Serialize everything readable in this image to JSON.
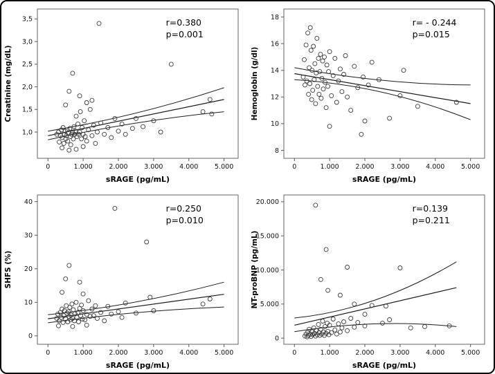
{
  "figure": {
    "background": "#ffffff",
    "border_color": "#000000",
    "point_color": "#3a3a3a",
    "line_color": "#1a1a1a",
    "frame_color": "#555555"
  },
  "chart_data": [
    {
      "type": "scatter",
      "title": "",
      "xlabel": "sRAGE (pg/mL)",
      "ylabel": "Creatinine (mg/dL)",
      "annotation_r": "r=0.380",
      "annotation_p": "p=0.001",
      "xlim": [
        -300,
        5400
      ],
      "ylim": [
        0.42,
        3.72
      ],
      "xticks": [
        {
          "v": 0,
          "label": "0"
        },
        {
          "v": 1000,
          "label": "1.000"
        },
        {
          "v": 2000,
          "label": "2.000"
        },
        {
          "v": 3000,
          "label": "3.000"
        },
        {
          "v": 4000,
          "label": "4.000"
        },
        {
          "v": 5000,
          "label": "5.000"
        }
      ],
      "yticks": [
        {
          "v": 1.0,
          "label": "1,0"
        },
        {
          "v": 1.5,
          "label": "1,5"
        },
        {
          "v": 2.0,
          "label": "2,0"
        },
        {
          "v": 2.5,
          "label": "2,5"
        },
        {
          "v": 3.0,
          "label": "3,0"
        },
        {
          "v": 3.5,
          "label": "3,5"
        }
      ],
      "points": [
        [
          250,
          0.95
        ],
        [
          300,
          1.0
        ],
        [
          320,
          0.78
        ],
        [
          360,
          0.92
        ],
        [
          380,
          1.05
        ],
        [
          400,
          0.65
        ],
        [
          400,
          0.88
        ],
        [
          430,
          1.1
        ],
        [
          450,
          0.75
        ],
        [
          470,
          0.95
        ],
        [
          490,
          1.02
        ],
        [
          500,
          1.6
        ],
        [
          510,
          0.85
        ],
        [
          530,
          0.92
        ],
        [
          550,
          1.05
        ],
        [
          560,
          0.8
        ],
        [
          580,
          0.98
        ],
        [
          600,
          0.6
        ],
        [
          600,
          1.9
        ],
        [
          620,
          1.08
        ],
        [
          640,
          0.9
        ],
        [
          650,
          0.72
        ],
        [
          670,
          0.95
        ],
        [
          700,
          1.0
        ],
        [
          700,
          2.3
        ],
        [
          720,
          0.85
        ],
        [
          740,
          1.12
        ],
        [
          760,
          0.95
        ],
        [
          780,
          1.02
        ],
        [
          800,
          0.62
        ],
        [
          800,
          1.35
        ],
        [
          820,
          0.9
        ],
        [
          850,
          1.18
        ],
        [
          870,
          0.95
        ],
        [
          900,
          1.0
        ],
        [
          900,
          1.8
        ],
        [
          920,
          1.45
        ],
        [
          950,
          0.85
        ],
        [
          970,
          1.1
        ],
        [
          1000,
          0.68
        ],
        [
          1000,
          0.95
        ],
        [
          1030,
          1.25
        ],
        [
          1060,
          0.9
        ],
        [
          1100,
          0.8
        ],
        [
          1100,
          1.65
        ],
        [
          1150,
          1.05
        ],
        [
          1200,
          1.5
        ],
        [
          1250,
          0.92
        ],
        [
          1250,
          1.7
        ],
        [
          1300,
          1.15
        ],
        [
          1350,
          0.75
        ],
        [
          1400,
          1.0
        ],
        [
          1450,
          3.4
        ],
        [
          1500,
          1.2
        ],
        [
          1600,
          0.95
        ],
        [
          1700,
          1.1
        ],
        [
          1800,
          0.88
        ],
        [
          1900,
          1.3
        ],
        [
          2000,
          1.02
        ],
        [
          2100,
          1.18
        ],
        [
          2200,
          0.95
        ],
        [
          2400,
          1.08
        ],
        [
          2500,
          1.3
        ],
        [
          2700,
          1.12
        ],
        [
          3000,
          1.25
        ],
        [
          3200,
          1.0
        ],
        [
          3500,
          2.5
        ],
        [
          4400,
          1.45
        ],
        [
          4600,
          1.72
        ],
        [
          4650,
          1.4
        ]
      ],
      "reg_line": [
        [
          0,
          0.92
        ],
        [
          5000,
          1.72
        ]
      ],
      "ci_upper": [
        [
          0,
          1.02
        ],
        [
          2500,
          1.42
        ],
        [
          5000,
          1.98
        ]
      ],
      "ci_lower": [
        [
          0,
          0.83
        ],
        [
          2500,
          1.2
        ],
        [
          5000,
          1.45
        ]
      ]
    },
    {
      "type": "scatter",
      "title": "",
      "xlabel": "sRAGE (pg/mL)",
      "ylabel": "Hemoglobin (g/dl)",
      "annotation_r": "r= - 0.244",
      "annotation_p": "p=0.015",
      "xlim": [
        -300,
        5400
      ],
      "ylim": [
        7.4,
        18.6
      ],
      "xticks": [
        {
          "v": 0,
          "label": "0"
        },
        {
          "v": 1000,
          "label": "1.000"
        },
        {
          "v": 2000,
          "label": "2.000"
        },
        {
          "v": 3000,
          "label": "3.000"
        },
        {
          "v": 4000,
          "label": "4.000"
        },
        {
          "v": 5000,
          "label": "5.000"
        }
      ],
      "yticks": [
        {
          "v": 8,
          "label": "8"
        },
        {
          "v": 10,
          "label": "10"
        },
        {
          "v": 12,
          "label": "12"
        },
        {
          "v": 14,
          "label": "14"
        },
        {
          "v": 16,
          "label": "16"
        },
        {
          "v": 18,
          "label": "18"
        }
      ],
      "points": [
        [
          250,
          13.5
        ],
        [
          280,
          14.8
        ],
        [
          300,
          12.9
        ],
        [
          330,
          15.9
        ],
        [
          350,
          13.2
        ],
        [
          380,
          16.8
        ],
        [
          400,
          12.2
        ],
        [
          420,
          14.2
        ],
        [
          440,
          13.0
        ],
        [
          450,
          17.2
        ],
        [
          470,
          15.5
        ],
        [
          490,
          11.8
        ],
        [
          500,
          14.0
        ],
        [
          520,
          12.5
        ],
        [
          540,
          15.8
        ],
        [
          560,
          13.3
        ],
        [
          580,
          14.5
        ],
        [
          600,
          11.5
        ],
        [
          620,
          13.8
        ],
        [
          640,
          16.4
        ],
        [
          660,
          12.8
        ],
        [
          680,
          14.9
        ],
        [
          700,
          12.2
        ],
        [
          720,
          13.9
        ],
        [
          740,
          15.2
        ],
        [
          760,
          11.9
        ],
        [
          780,
          13.4
        ],
        [
          800,
          14.7
        ],
        [
          820,
          12.6
        ],
        [
          850,
          15.0
        ],
        [
          870,
          13.1
        ],
        [
          900,
          11.2
        ],
        [
          920,
          14.4
        ],
        [
          950,
          12.8
        ],
        [
          970,
          13.9
        ],
        [
          1000,
          9.8
        ],
        [
          1000,
          15.4
        ],
        [
          1050,
          12.1
        ],
        [
          1100,
          13.6
        ],
        [
          1150,
          14.9
        ],
        [
          1200,
          11.6
        ],
        [
          1250,
          13.2
        ],
        [
          1300,
          14.1
        ],
        [
          1350,
          12.4
        ],
        [
          1400,
          13.7
        ],
        [
          1450,
          15.1
        ],
        [
          1500,
          12.0
        ],
        [
          1600,
          11.0
        ],
        [
          1700,
          14.3
        ],
        [
          1800,
          12.7
        ],
        [
          1900,
          9.2
        ],
        [
          1950,
          13.5
        ],
        [
          2000,
          10.2
        ],
        [
          2100,
          12.9
        ],
        [
          2200,
          14.6
        ],
        [
          2400,
          13.3
        ],
        [
          2700,
          10.4
        ],
        [
          3000,
          12.1
        ],
        [
          3100,
          14.0
        ],
        [
          3500,
          11.3
        ],
        [
          4600,
          11.6
        ]
      ],
      "reg_line": [
        [
          0,
          13.75
        ],
        [
          5000,
          11.5
        ]
      ],
      "ci_upper": [
        [
          0,
          14.2
        ],
        [
          2500,
          13.25
        ],
        [
          5000,
          12.9
        ]
      ],
      "ci_lower": [
        [
          0,
          13.3
        ],
        [
          2500,
          12.35
        ],
        [
          5000,
          10.3
        ]
      ]
    },
    {
      "type": "scatter",
      "title": "",
      "xlabel": "sRAGE (pg/mL)",
      "ylabel": "SHFS (%)",
      "annotation_r": "r=0.250",
      "annotation_p": "p=0.010",
      "xlim": [
        -300,
        5400
      ],
      "ylim": [
        -2.5,
        42
      ],
      "xticks": [
        {
          "v": 0,
          "label": "0"
        },
        {
          "v": 1000,
          "label": "1.000"
        },
        {
          "v": 2000,
          "label": "2.000"
        },
        {
          "v": 3000,
          "label": "3.000"
        },
        {
          "v": 4000,
          "label": "4.000"
        },
        {
          "v": 5000,
          "label": "5.000"
        }
      ],
      "yticks": [
        {
          "v": 0,
          "label": "0"
        },
        {
          "v": 10,
          "label": "10"
        },
        {
          "v": 20,
          "label": "20"
        },
        {
          "v": 30,
          "label": "30"
        },
        {
          "v": 40,
          "label": "40"
        }
      ],
      "points": [
        [
          250,
          5.2
        ],
        [
          280,
          6.5
        ],
        [
          300,
          3.0
        ],
        [
          320,
          4.5
        ],
        [
          350,
          7.0
        ],
        [
          380,
          5.5
        ],
        [
          400,
          8.0
        ],
        [
          400,
          13.0
        ],
        [
          430,
          4.0
        ],
        [
          450,
          6.0
        ],
        [
          470,
          7.5
        ],
        [
          500,
          5.0
        ],
        [
          500,
          17.0
        ],
        [
          520,
          9.0
        ],
        [
          540,
          6.8
        ],
        [
          560,
          4.2
        ],
        [
          580,
          7.2
        ],
        [
          600,
          5.8
        ],
        [
          600,
          21.0
        ],
        [
          620,
          8.5
        ],
        [
          640,
          4.8
        ],
        [
          660,
          6.2
        ],
        [
          680,
          9.5
        ],
        [
          700,
          5.2
        ],
        [
          700,
          2.8
        ],
        [
          720,
          7.8
        ],
        [
          750,
          4.5
        ],
        [
          770,
          6.6
        ],
        [
          800,
          10.0
        ],
        [
          820,
          5.5
        ],
        [
          850,
          7.0
        ],
        [
          870,
          4.2
        ],
        [
          900,
          8.2
        ],
        [
          900,
          16.0
        ],
        [
          930,
          6.0
        ],
        [
          950,
          9.2
        ],
        [
          980,
          5.0
        ],
        [
          1000,
          7.5
        ],
        [
          1000,
          12.5
        ],
        [
          1050,
          4.8
        ],
        [
          1100,
          6.4
        ],
        [
          1100,
          3.2
        ],
        [
          1150,
          10.5
        ],
        [
          1200,
          5.8
        ],
        [
          1250,
          8.0
        ],
        [
          1300,
          6.0
        ],
        [
          1350,
          9.0
        ],
        [
          1400,
          5.2
        ],
        [
          1500,
          7.0
        ],
        [
          1600,
          4.5
        ],
        [
          1700,
          8.8
        ],
        [
          1800,
          6.5
        ],
        [
          1900,
          38.0
        ],
        [
          2000,
          7.2
        ],
        [
          2100,
          5.5
        ],
        [
          2200,
          9.8
        ],
        [
          2500,
          6.8
        ],
        [
          2800,
          28.0
        ],
        [
          2900,
          11.5
        ],
        [
          3000,
          7.5
        ],
        [
          4400,
          9.5
        ],
        [
          4600,
          11.0
        ]
      ],
      "reg_line": [
        [
          0,
          5.1
        ],
        [
          5000,
          12.4
        ]
      ],
      "ci_upper": [
        [
          0,
          6.3
        ],
        [
          2500,
          10.1
        ],
        [
          5000,
          16.0
        ]
      ],
      "ci_lower": [
        [
          0,
          3.9
        ],
        [
          2500,
          6.9
        ],
        [
          5000,
          8.6
        ]
      ]
    },
    {
      "type": "scatter",
      "title": "",
      "xlabel": "sRAGE (pg/mL)",
      "ylabel": "NT-proBNP (pg/mL)",
      "annotation_r": "r=0.139",
      "annotation_p": "p=0.211",
      "xlim": [
        -300,
        5400
      ],
      "ylim": [
        -900,
        21000
      ],
      "xticks": [
        {
          "v": 0,
          "label": "0"
        },
        {
          "v": 1000,
          "label": "1.000"
        },
        {
          "v": 2000,
          "label": "2.000"
        },
        {
          "v": 3000,
          "label": "3.000"
        },
        {
          "v": 4000,
          "label": "4.000"
        },
        {
          "v": 5000,
          "label": "5.000"
        }
      ],
      "yticks": [
        {
          "v": 0,
          "label": "0"
        },
        {
          "v": 5000,
          "label": "5.000"
        },
        {
          "v": 10000,
          "label": "10.000"
        },
        {
          "v": 15000,
          "label": "15.000"
        },
        {
          "v": 20000,
          "label": "20.000"
        }
      ],
      "points": [
        [
          300,
          300
        ],
        [
          330,
          600
        ],
        [
          360,
          200
        ],
        [
          380,
          900
        ],
        [
          400,
          400
        ],
        [
          420,
          1300
        ],
        [
          450,
          600
        ],
        [
          470,
          250
        ],
        [
          500,
          950
        ],
        [
          520,
          500
        ],
        [
          550,
          1500
        ],
        [
          570,
          700
        ],
        [
          600,
          300
        ],
        [
          600,
          19500
        ],
        [
          620,
          1100
        ],
        [
          650,
          500
        ],
        [
          680,
          2000
        ],
        [
          700,
          800
        ],
        [
          720,
          400
        ],
        [
          750,
          1300
        ],
        [
          750,
          8600
        ],
        [
          780,
          600
        ],
        [
          800,
          2500
        ],
        [
          820,
          900
        ],
        [
          850,
          400
        ],
        [
          870,
          1700
        ],
        [
          900,
          700
        ],
        [
          900,
          13000
        ],
        [
          930,
          2200
        ],
        [
          950,
          1000
        ],
        [
          950,
          7000
        ],
        [
          980,
          500
        ],
        [
          1000,
          1900
        ],
        [
          1050,
          800
        ],
        [
          1100,
          2800
        ],
        [
          1150,
          1200
        ],
        [
          1200,
          600
        ],
        [
          1250,
          2100
        ],
        [
          1300,
          900
        ],
        [
          1300,
          6300
        ],
        [
          1350,
          1500
        ],
        [
          1400,
          2400
        ],
        [
          1500,
          1100
        ],
        [
          1500,
          10400
        ],
        [
          1600,
          2900
        ],
        [
          1700,
          1600
        ],
        [
          1700,
          5000
        ],
        [
          1800,
          2300
        ],
        [
          2000,
          1800
        ],
        [
          2000,
          3500
        ],
        [
          2200,
          4800
        ],
        [
          2500,
          2200
        ],
        [
          2600,
          4700
        ],
        [
          2700,
          2700
        ],
        [
          3000,
          10300
        ],
        [
          3300,
          1500
        ],
        [
          3700,
          1700
        ],
        [
          4400,
          1800
        ]
      ],
      "reg_line": [
        [
          0,
          1900
        ],
        [
          4600,
          7400
        ]
      ],
      "ci_upper": [
        [
          0,
          2950
        ],
        [
          2300,
          5600
        ],
        [
          4600,
          11200
        ]
      ],
      "ci_lower": [
        [
          0,
          950
        ],
        [
          2300,
          2100
        ],
        [
          4600,
          1700
        ]
      ]
    }
  ]
}
